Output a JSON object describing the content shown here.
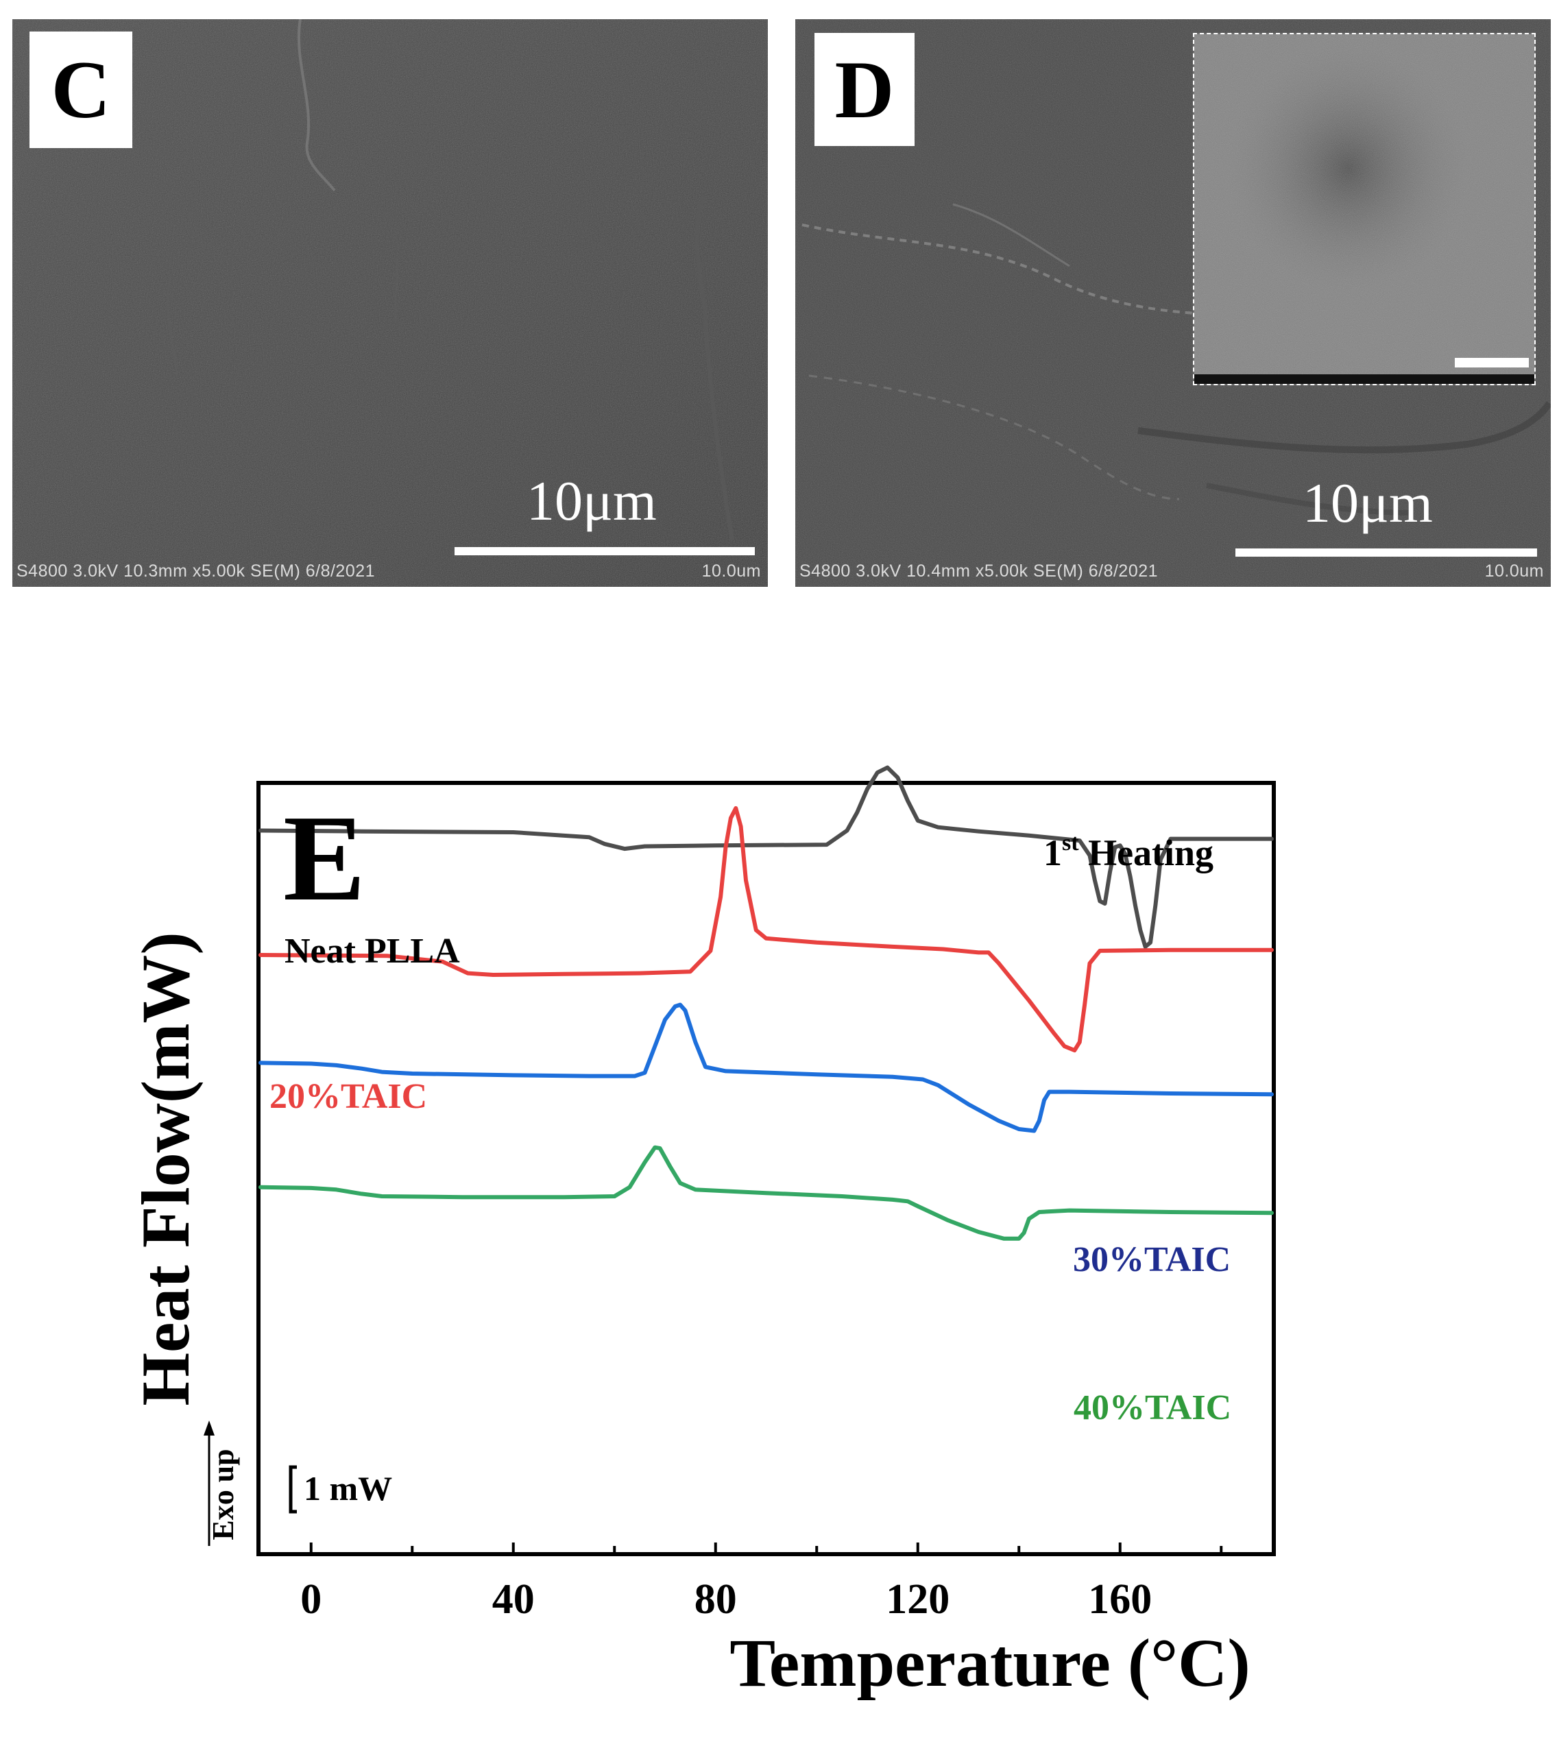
{
  "panels": {
    "c": {
      "letter": "C",
      "scale_label": "10μm",
      "footer_left": "S4800 3.0kV 10.3mm x5.00k SE(M) 6/8/2021",
      "footer_right": "10.0um"
    },
    "d": {
      "letter": "D",
      "scale_label": "10μm",
      "footer_left": "S4800 3.0kV 10.4mm x5.00k SE(M) 6/8/2021",
      "footer_right": "10.0um"
    }
  },
  "chart_data": {
    "type": "line",
    "panel_letter": "E",
    "annotation": "1st Heating",
    "annotation_main": "1",
    "annotation_sup": "st",
    "annotation_rest": " Heating",
    "xlabel": "Temperature (°C)",
    "ylabel": "Heat Flow(mW)",
    "exo_label": "Exo up",
    "scale_label": "1 mW",
    "xlim": [
      -10,
      190
    ],
    "ylim": [
      -8.7,
      0.55
    ],
    "x_ticks": [
      0,
      40,
      80,
      120,
      160
    ],
    "x_minor_ticks": [
      20,
      60,
      100,
      140,
      180
    ],
    "grid": false,
    "legend": "inline labels",
    "series": [
      {
        "name": "Neat PLLA",
        "color": "#4d4d4d",
        "points": [
          [
            -10,
            0.0
          ],
          [
            10,
            -0.01
          ],
          [
            40,
            -0.02
          ],
          [
            55,
            -0.08
          ],
          [
            58,
            -0.16
          ],
          [
            62,
            -0.22
          ],
          [
            66,
            -0.19
          ],
          [
            80,
            -0.18
          ],
          [
            102,
            -0.17
          ],
          [
            106,
            0.0
          ],
          [
            108,
            0.22
          ],
          [
            110,
            0.5
          ],
          [
            112,
            0.7
          ],
          [
            114,
            0.76
          ],
          [
            116,
            0.64
          ],
          [
            118,
            0.36
          ],
          [
            120,
            0.12
          ],
          [
            124,
            0.04
          ],
          [
            132,
            -0.01
          ],
          [
            142,
            -0.06
          ],
          [
            152,
            -0.12
          ],
          [
            154,
            -0.3
          ],
          [
            155,
            -0.6
          ],
          [
            156,
            -0.85
          ],
          [
            157,
            -0.88
          ],
          [
            158,
            -0.5
          ],
          [
            159,
            -0.2
          ],
          [
            160,
            -0.18
          ],
          [
            161,
            -0.28
          ],
          [
            162,
            -0.55
          ],
          [
            163,
            -0.9
          ],
          [
            164,
            -1.2
          ],
          [
            165,
            -1.4
          ],
          [
            166,
            -1.35
          ],
          [
            167,
            -0.9
          ],
          [
            168,
            -0.35
          ],
          [
            170,
            -0.1
          ],
          [
            180,
            -0.1
          ],
          [
            190,
            -0.1
          ]
        ]
      },
      {
        "name": "20%TAIC",
        "color": "#e8413f",
        "points": [
          [
            -10,
            -1.5
          ],
          [
            15,
            -1.51
          ],
          [
            26,
            -1.58
          ],
          [
            31,
            -1.72
          ],
          [
            36,
            -1.74
          ],
          [
            50,
            -1.73
          ],
          [
            65,
            -1.72
          ],
          [
            75,
            -1.7
          ],
          [
            79,
            -1.45
          ],
          [
            81,
            -0.8
          ],
          [
            82,
            -0.2
          ],
          [
            83,
            0.15
          ],
          [
            84,
            0.27
          ],
          [
            85,
            0.05
          ],
          [
            86,
            -0.6
          ],
          [
            88,
            -1.2
          ],
          [
            90,
            -1.3
          ],
          [
            100,
            -1.35
          ],
          [
            115,
            -1.4
          ],
          [
            125,
            -1.43
          ],
          [
            132,
            -1.47
          ],
          [
            134,
            -1.47
          ],
          [
            136,
            -1.6
          ],
          [
            142,
            -2.05
          ],
          [
            147,
            -2.45
          ],
          [
            149,
            -2.6
          ],
          [
            151,
            -2.65
          ],
          [
            152,
            -2.55
          ],
          [
            153,
            -2.1
          ],
          [
            154,
            -1.6
          ],
          [
            156,
            -1.45
          ],
          [
            170,
            -1.44
          ],
          [
            190,
            -1.44
          ]
        ]
      },
      {
        "name": "30%TAIC",
        "color": "#1d6fdb",
        "points": [
          [
            -10,
            -2.8
          ],
          [
            0,
            -2.81
          ],
          [
            5,
            -2.83
          ],
          [
            10,
            -2.87
          ],
          [
            14,
            -2.91
          ],
          [
            20,
            -2.93
          ],
          [
            40,
            -2.95
          ],
          [
            55,
            -2.96
          ],
          [
            64,
            -2.96
          ],
          [
            66,
            -2.92
          ],
          [
            68,
            -2.6
          ],
          [
            70,
            -2.28
          ],
          [
            72,
            -2.12
          ],
          [
            73,
            -2.1
          ],
          [
            74,
            -2.17
          ],
          [
            76,
            -2.55
          ],
          [
            78,
            -2.85
          ],
          [
            82,
            -2.9
          ],
          [
            100,
            -2.94
          ],
          [
            115,
            -2.97
          ],
          [
            121,
            -3.0
          ],
          [
            124,
            -3.07
          ],
          [
            130,
            -3.3
          ],
          [
            136,
            -3.5
          ],
          [
            140,
            -3.6
          ],
          [
            143,
            -3.62
          ],
          [
            144,
            -3.5
          ],
          [
            145,
            -3.25
          ],
          [
            146,
            -3.15
          ],
          [
            150,
            -3.15
          ],
          [
            170,
            -3.17
          ],
          [
            190,
            -3.18
          ]
        ]
      },
      {
        "name": "40%TAIC",
        "color": "#34a764",
        "points": [
          [
            -10,
            -4.3
          ],
          [
            0,
            -4.31
          ],
          [
            5,
            -4.33
          ],
          [
            10,
            -4.38
          ],
          [
            14,
            -4.41
          ],
          [
            30,
            -4.42
          ],
          [
            50,
            -4.42
          ],
          [
            60,
            -4.41
          ],
          [
            63,
            -4.3
          ],
          [
            66,
            -4.0
          ],
          [
            68,
            -3.82
          ],
          [
            69,
            -3.83
          ],
          [
            71,
            -4.05
          ],
          [
            73,
            -4.25
          ],
          [
            76,
            -4.33
          ],
          [
            90,
            -4.37
          ],
          [
            105,
            -4.41
          ],
          [
            115,
            -4.45
          ],
          [
            118,
            -4.47
          ],
          [
            120,
            -4.53
          ],
          [
            126,
            -4.7
          ],
          [
            132,
            -4.84
          ],
          [
            137,
            -4.92
          ],
          [
            140,
            -4.92
          ],
          [
            141,
            -4.85
          ],
          [
            142,
            -4.68
          ],
          [
            144,
            -4.6
          ],
          [
            150,
            -4.58
          ],
          [
            170,
            -4.6
          ],
          [
            190,
            -4.61
          ]
        ]
      }
    ]
  }
}
